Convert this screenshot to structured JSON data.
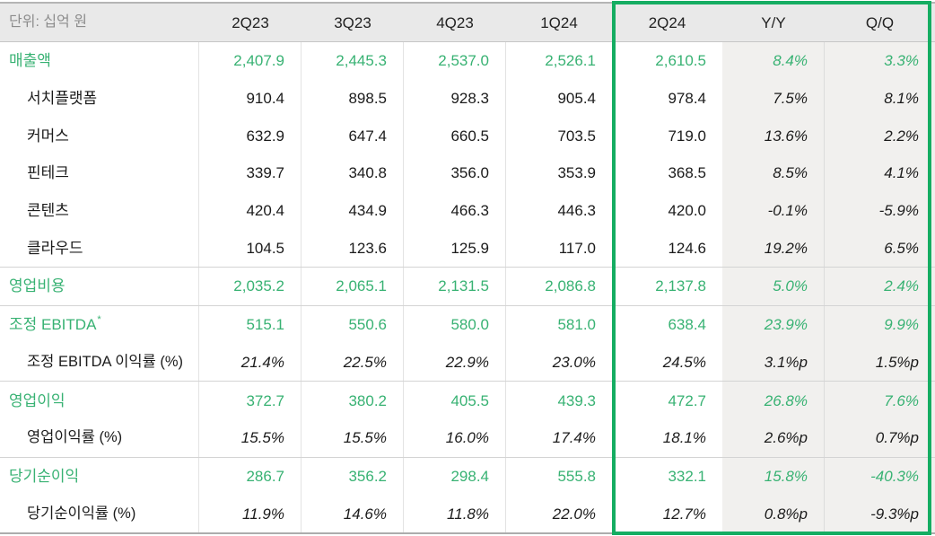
{
  "unit_label": "단위: 십억 원",
  "columns": [
    "2Q23",
    "3Q23",
    "4Q23",
    "1Q24",
    "2Q24",
    "Y/Y",
    "Q/Q"
  ],
  "colors": {
    "green_text": "#38b273",
    "highlight_border": "#15ad62",
    "header_bg": "#e9e9e9",
    "delta_col_bg": "#f1f0ee"
  },
  "rows": [
    {
      "label": "매출액",
      "type": "group",
      "values": [
        "2,407.9",
        "2,445.3",
        "2,537.0",
        "2,526.1",
        "2,610.5",
        "8.4%",
        "3.3%"
      ]
    },
    {
      "label": "서치플랫폼",
      "type": "sub",
      "values": [
        "910.4",
        "898.5",
        "928.3",
        "905.4",
        "978.4",
        "7.5%",
        "8.1%"
      ]
    },
    {
      "label": "커머스",
      "type": "sub",
      "values": [
        "632.9",
        "647.4",
        "660.5",
        "703.5",
        "719.0",
        "13.6%",
        "2.2%"
      ]
    },
    {
      "label": "핀테크",
      "type": "sub",
      "values": [
        "339.7",
        "340.8",
        "356.0",
        "353.9",
        "368.5",
        "8.5%",
        "4.1%"
      ]
    },
    {
      "label": "콘텐츠",
      "type": "sub",
      "values": [
        "420.4",
        "434.9",
        "466.3",
        "446.3",
        "420.0",
        "-0.1%",
        "-5.9%"
      ]
    },
    {
      "label": "클라우드",
      "type": "sub",
      "values": [
        "104.5",
        "123.6",
        "125.9",
        "117.0",
        "124.6",
        "19.2%",
        "6.5%"
      ]
    },
    {
      "label": "영업비용",
      "type": "group",
      "section_start": true,
      "values": [
        "2,035.2",
        "2,065.1",
        "2,131.5",
        "2,086.8",
        "2,137.8",
        "5.0%",
        "2.4%"
      ]
    },
    {
      "label": "조정 EBITDA",
      "sup": "*",
      "type": "group",
      "section_start": true,
      "values": [
        "515.1",
        "550.6",
        "580.0",
        "581.0",
        "638.4",
        "23.9%",
        "9.9%"
      ]
    },
    {
      "label": "조정 EBITDA 이익률 (%)",
      "type": "rate",
      "values": [
        "21.4%",
        "22.5%",
        "22.9%",
        "23.0%",
        "24.5%",
        "3.1%p",
        "1.5%p"
      ]
    },
    {
      "label": "영업이익",
      "type": "group",
      "section_start": true,
      "values": [
        "372.7",
        "380.2",
        "405.5",
        "439.3",
        "472.7",
        "26.8%",
        "7.6%"
      ]
    },
    {
      "label": "영업이익률 (%)",
      "type": "rate",
      "values": [
        "15.5%",
        "15.5%",
        "16.0%",
        "17.4%",
        "18.1%",
        "2.6%p",
        "0.7%p"
      ]
    },
    {
      "label": "당기순이익",
      "type": "group",
      "section_start": true,
      "values": [
        "286.7",
        "356.2",
        "298.4",
        "555.8",
        "332.1",
        "15.8%",
        "-40.3%"
      ]
    },
    {
      "label": "당기순이익률 (%)",
      "type": "rate",
      "values": [
        "11.9%",
        "14.6%",
        "11.8%",
        "22.0%",
        "12.7%",
        "0.8%p",
        "-9.3%p"
      ]
    }
  ]
}
